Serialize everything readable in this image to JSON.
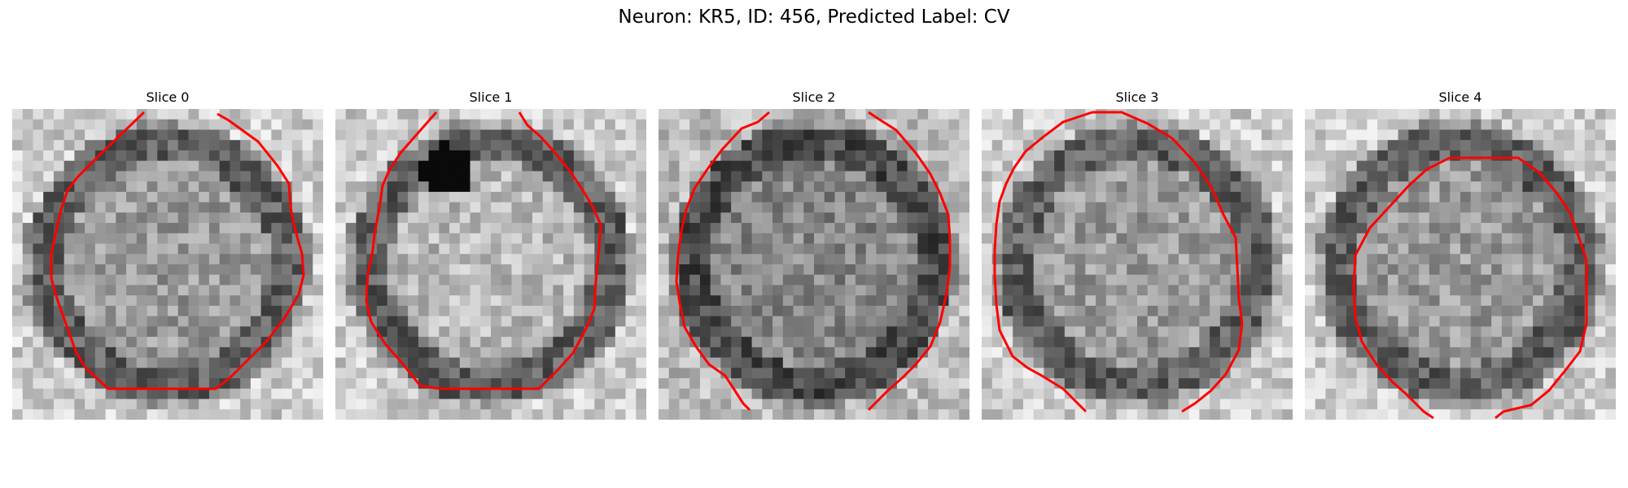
{
  "figure": {
    "title": "Neuron: KR5, ID: 456, Predicted Label: CV"
  },
  "panels": [
    {
      "title": "Slice 0"
    },
    {
      "title": "Slice 1"
    },
    {
      "title": "Slice 2"
    },
    {
      "title": "Slice 3"
    },
    {
      "title": "Slice 4"
    }
  ],
  "colors": {
    "contour": "#ff0000",
    "background": "#ffffff"
  }
}
